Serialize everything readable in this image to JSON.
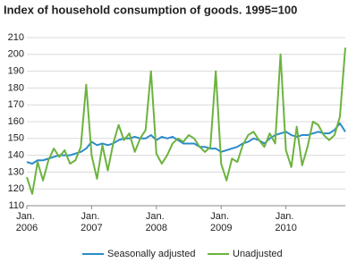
{
  "chart_data": {
    "type": "line",
    "title": "Index of household consumption of goods. 1995=100",
    "categories": [
      "Jan. 2006",
      null,
      null,
      null,
      null,
      null,
      null,
      null,
      null,
      null,
      null,
      null,
      "Jan. 2007",
      null,
      null,
      null,
      null,
      null,
      null,
      null,
      null,
      null,
      null,
      null,
      "Jan. 2008",
      null,
      null,
      null,
      null,
      null,
      null,
      null,
      null,
      null,
      null,
      null,
      "Jan. 2009",
      null,
      null,
      null,
      null,
      null,
      null,
      null,
      null,
      null,
      null,
      null,
      "Jan. 2010",
      null,
      null,
      null,
      null,
      null,
      null,
      null,
      null,
      null,
      null,
      null
    ],
    "series": [
      {
        "name": "Seasonally adjusted",
        "color": "#2b8cc8",
        "values": [
          136,
          135,
          137,
          137,
          138,
          139,
          140,
          140,
          140,
          141,
          142,
          144,
          148,
          146,
          147,
          146,
          147,
          149,
          150,
          150,
          151,
          150,
          150,
          152,
          149,
          151,
          150,
          151,
          149,
          147,
          147,
          147,
          145,
          145,
          144,
          144,
          142,
          143,
          144,
          145,
          147,
          148,
          150,
          149,
          147,
          150,
          152,
          153,
          154,
          152,
          151,
          152,
          152,
          153,
          154,
          153,
          153,
          155,
          159,
          154
        ]
      },
      {
        "name": "Unadjusted",
        "color": "#6cb33f",
        "values": [
          127,
          117,
          136,
          125,
          137,
          144,
          139,
          143,
          135,
          137,
          145,
          182,
          140,
          126,
          146,
          131,
          147,
          158,
          149,
          153,
          142,
          150,
          155,
          190,
          141,
          135,
          140,
          147,
          150,
          148,
          152,
          150,
          145,
          142,
          145,
          190,
          135,
          125,
          138,
          136,
          146,
          152,
          154,
          149,
          145,
          153,
          147,
          200,
          143,
          133,
          157,
          134,
          145,
          160,
          158,
          152,
          149,
          152,
          163,
          204
        ]
      }
    ],
    "ylim": [
      110,
      210
    ],
    "yticks": [
      110,
      120,
      130,
      140,
      150,
      160,
      170,
      180,
      190,
      200,
      210
    ],
    "grid": true
  }
}
